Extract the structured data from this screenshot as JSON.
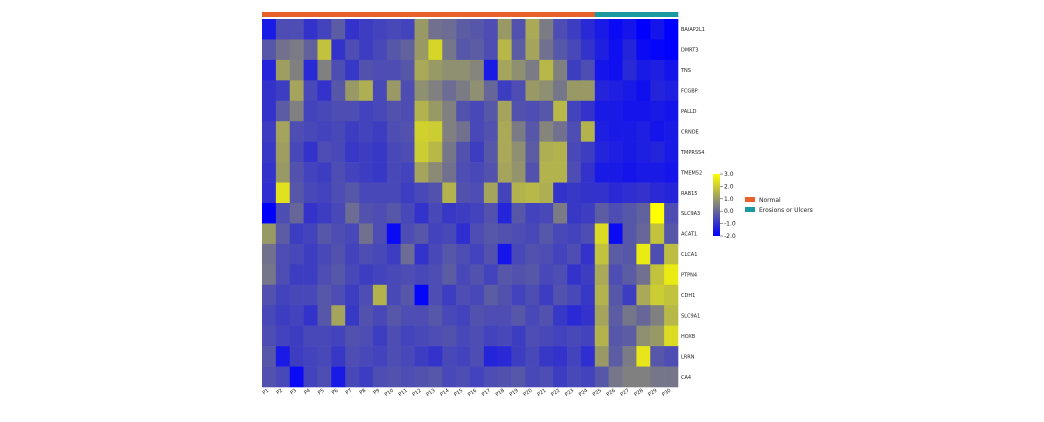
{
  "chart_data": {
    "type": "heatmap",
    "title": "",
    "rows": [
      "BAIAP2L1",
      "DMRT3",
      "TNS",
      "FCGBP",
      "PALLD",
      "CRNDE",
      "TMPRSS4",
      "TMEM52",
      "RAB15",
      "SLC9A3",
      "ACAT1",
      "CLCA1",
      "PTPN4",
      "CDH1",
      "SLC9A1",
      "HOXB",
      "LRRN",
      "CA4"
    ],
    "columns": [
      "P1",
      "P2",
      "P3",
      "P4",
      "P5",
      "P6",
      "P7",
      "P8",
      "P9",
      "P10",
      "P11",
      "P12",
      "P13",
      "P14",
      "P15",
      "P16",
      "P17",
      "P18",
      "P19",
      "P20",
      "P21",
      "P22",
      "P23",
      "P24",
      "P25",
      "P26",
      "P27",
      "P28",
      "P29",
      "P30"
    ],
    "column_groups": [
      "Normal",
      "Normal",
      "Normal",
      "Normal",
      "Normal",
      "Normal",
      "Normal",
      "Normal",
      "Normal",
      "Normal",
      "Normal",
      "Normal",
      "Normal",
      "Normal",
      "Normal",
      "Normal",
      "Normal",
      "Normal",
      "Normal",
      "Normal",
      "Normal",
      "Normal",
      "Normal",
      "Normal",
      "Erosions or Ulcers",
      "Erosions or Ulcers",
      "Erosions or Ulcers",
      "Erosions or Ulcers",
      "Erosions or Ulcers",
      "Erosions or Ulcers"
    ],
    "groups": [
      {
        "name": "Normal",
        "color": "#E8602C"
      },
      {
        "name": "Erosions or Ulcers",
        "color": "#1A9AA0"
      }
    ],
    "values": [
      [
        -1.5,
        -0.5,
        -0.5,
        -1.0,
        -0.7,
        -0.2,
        -1.0,
        -0.8,
        -0.7,
        -0.6,
        -0.7,
        1.0,
        0.2,
        0.1,
        -0.2,
        -0.3,
        -0.5,
        1.0,
        -0.4,
        1.3,
        0.4,
        -0.5,
        -0.8,
        -1.2,
        -1.5,
        -1.8,
        -1.6,
        -2.0,
        -1.6,
        -2.0
      ],
      [
        -0.3,
        0.2,
        0.4,
        -0.1,
        1.8,
        -1.0,
        -0.5,
        -0.8,
        -0.6,
        -0.3,
        -0.1,
        1.0,
        2.2,
        0.3,
        -0.3,
        -0.2,
        -0.5,
        1.6,
        -0.2,
        1.2,
        0.2,
        -0.3,
        -0.6,
        -1.0,
        -1.4,
        -1.7,
        -1.3,
        -1.8,
        -1.9,
        -2.0
      ],
      [
        -1.3,
        1.1,
        0.5,
        -1.2,
        0.5,
        -0.5,
        -0.9,
        -0.4,
        -0.5,
        -0.5,
        -0.3,
        1.3,
        1.0,
        0.8,
        0.8,
        0.6,
        -1.5,
        1.2,
        0.8,
        0.4,
        1.6,
        0.5,
        -0.8,
        -0.5,
        -1.6,
        -1.7,
        -1.2,
        -1.5,
        -1.4,
        -1.6
      ],
      [
        -1.0,
        -0.8,
        1.2,
        -0.6,
        -1.0,
        -0.3,
        1.0,
        1.4,
        -0.6,
        1.0,
        -0.5,
        0.8,
        0.5,
        0.1,
        0.4,
        0.8,
        0.0,
        -0.8,
        -0.5,
        1.0,
        0.8,
        0.3,
        1.0,
        1.0,
        -1.3,
        -1.4,
        -1.5,
        -1.7,
        -1.3,
        -1.4
      ],
      [
        -1.0,
        -0.2,
        0.5,
        -0.7,
        -0.6,
        -0.5,
        -0.5,
        -0.7,
        -0.6,
        -0.4,
        -0.5,
        1.5,
        1.0,
        0.5,
        -0.4,
        -0.6,
        -0.3,
        1.2,
        -0.4,
        -0.5,
        -0.3,
        1.6,
        -0.7,
        -1.0,
        -1.5,
        -1.5,
        -1.6,
        -1.6,
        -1.5,
        -1.6
      ],
      [
        -0.8,
        1.2,
        -0.5,
        -0.6,
        -0.7,
        -0.6,
        -0.8,
        -0.7,
        -0.8,
        -0.5,
        -0.4,
        2.1,
        2.0,
        0.5,
        0.2,
        -0.6,
        -0.4,
        1.3,
        0.4,
        -0.3,
        0.6,
        0.2,
        -0.5,
        1.5,
        -1.4,
        -1.5,
        -1.5,
        -1.4,
        -1.6,
        -1.5
      ],
      [
        -0.9,
        1.1,
        -0.6,
        -1.0,
        -0.5,
        -0.6,
        -0.9,
        -0.8,
        -0.9,
        -0.6,
        -0.5,
        2.0,
        1.6,
        0.3,
        -0.4,
        -0.8,
        -0.3,
        1.3,
        0.8,
        -0.2,
        1.4,
        1.5,
        -0.6,
        -0.8,
        -1.3,
        -1.4,
        -1.5,
        -1.4,
        -1.3,
        -1.5
      ],
      [
        -1.0,
        1.0,
        -0.4,
        -0.7,
        -0.8,
        -0.5,
        -0.7,
        -0.8,
        -0.9,
        -0.6,
        -0.7,
        1.2,
        0.7,
        0.2,
        -0.5,
        -0.6,
        -0.4,
        1.2,
        0.9,
        -0.4,
        1.5,
        1.5,
        -0.5,
        -1.0,
        -1.5,
        -1.5,
        -1.6,
        -1.5,
        -1.5,
        -1.6
      ],
      [
        -1.1,
        2.4,
        -0.3,
        -0.6,
        -0.7,
        -0.5,
        -0.3,
        -0.6,
        -0.6,
        -0.6,
        -0.8,
        -0.6,
        -0.4,
        1.5,
        -0.4,
        -0.5,
        1.2,
        -0.7,
        1.5,
        1.6,
        1.4,
        -1.0,
        -0.9,
        -1.0,
        -1.0,
        -1.2,
        -1.1,
        -1.0,
        -1.2,
        -1.3
      ],
      [
        -2.0,
        -0.5,
        0.0,
        -1.0,
        -0.8,
        -0.6,
        0.1,
        -0.4,
        -0.5,
        -0.3,
        -0.6,
        -1.0,
        -0.6,
        -0.9,
        -0.8,
        -0.7,
        -0.4,
        -1.3,
        -0.3,
        -0.7,
        -0.6,
        0.4,
        -0.9,
        -0.8,
        -0.2,
        -0.5,
        -0.3,
        -0.1,
        3.0,
        -0.5
      ],
      [
        1.0,
        -0.2,
        -0.8,
        -0.7,
        -0.3,
        -0.5,
        -0.6,
        0.2,
        -0.5,
        -1.8,
        -0.5,
        -0.3,
        -0.7,
        -0.6,
        -1.1,
        -0.5,
        -0.3,
        -0.4,
        -0.5,
        -0.6,
        -0.3,
        -0.6,
        -0.7,
        -0.5,
        2.3,
        -1.8,
        -0.3,
        0.0,
        1.8,
        -0.3
      ],
      [
        0.2,
        -0.5,
        -0.6,
        -0.8,
        -0.6,
        -0.4,
        -0.7,
        -0.5,
        -0.6,
        -0.8,
        0.1,
        -1.0,
        -0.6,
        -0.3,
        -0.5,
        -0.7,
        -0.4,
        -1.6,
        -0.6,
        -0.4,
        -0.5,
        -0.7,
        -0.5,
        -1.0,
        1.8,
        -0.2,
        -0.3,
        2.6,
        -0.5,
        1.7
      ],
      [
        0.3,
        -0.5,
        -0.8,
        -0.8,
        -0.5,
        -0.3,
        -0.6,
        -0.8,
        -0.7,
        -0.6,
        -0.5,
        -0.6,
        -0.5,
        -0.2,
        -0.6,
        -0.4,
        -0.7,
        -0.3,
        -0.4,
        -0.3,
        -0.6,
        -0.5,
        -1.0,
        -0.8,
        1.3,
        -0.5,
        -0.2,
        0.2,
        1.8,
        2.6
      ],
      [
        -0.4,
        -0.7,
        -0.6,
        -0.6,
        -0.3,
        -0.5,
        -0.8,
        -0.5,
        1.5,
        -0.6,
        -0.3,
        -1.9,
        -0.5,
        -0.8,
        -0.5,
        -0.6,
        -0.2,
        -0.4,
        -0.7,
        -0.5,
        -0.8,
        -0.4,
        -0.6,
        -0.9,
        1.5,
        -0.3,
        -0.8,
        1.3,
        2.0,
        1.8
      ],
      [
        -0.6,
        -0.8,
        -0.7,
        -1.0,
        -0.3,
        1.2,
        -0.9,
        -0.4,
        -0.6,
        -0.3,
        -0.5,
        -0.5,
        -0.3,
        -0.6,
        -0.7,
        -0.4,
        -0.5,
        -0.5,
        -0.3,
        -0.6,
        -0.4,
        -0.9,
        -1.2,
        -1.0,
        1.2,
        -0.2,
        0.3,
        0.0,
        0.5,
        1.6
      ],
      [
        -0.5,
        -0.7,
        -0.8,
        -0.6,
        -0.6,
        -0.7,
        -0.4,
        -0.5,
        -0.8,
        -0.5,
        -0.7,
        -0.6,
        -0.5,
        -0.4,
        -0.6,
        -0.5,
        -0.7,
        -0.6,
        -0.8,
        -0.5,
        -0.6,
        -0.7,
        -0.6,
        -0.7,
        1.5,
        -0.3,
        -0.2,
        0.8,
        1.0,
        2.3
      ],
      [
        -0.3,
        -1.5,
        -0.8,
        -0.7,
        -0.6,
        -0.9,
        -0.5,
        -0.6,
        -0.7,
        -0.5,
        -0.6,
        -0.8,
        -1.0,
        -0.6,
        -0.7,
        -0.5,
        -1.3,
        -1.2,
        -0.8,
        -0.6,
        -0.9,
        -1.0,
        -0.7,
        -1.1,
        1.0,
        -0.2,
        0.4,
        2.5,
        -0.3,
        -0.5
      ],
      [
        -0.4,
        -0.6,
        -1.8,
        -0.7,
        -0.5,
        -1.5,
        -0.6,
        -0.8,
        -0.5,
        -0.4,
        -0.5,
        -0.4,
        -0.3,
        -0.6,
        -0.5,
        -0.7,
        -0.5,
        -0.4,
        -0.3,
        -0.6,
        -0.5,
        -0.8,
        -0.6,
        -0.7,
        -0.3,
        0.3,
        0.5,
        0.5,
        0.3,
        0.3
      ]
    ],
    "colorbar": {
      "min": -2.0,
      "max": 3.0,
      "ticks": [
        "3.0",
        "2.0",
        "1.0",
        "0.0",
        "-1.0",
        "-2.0"
      ]
    },
    "legend_placement": "right"
  }
}
